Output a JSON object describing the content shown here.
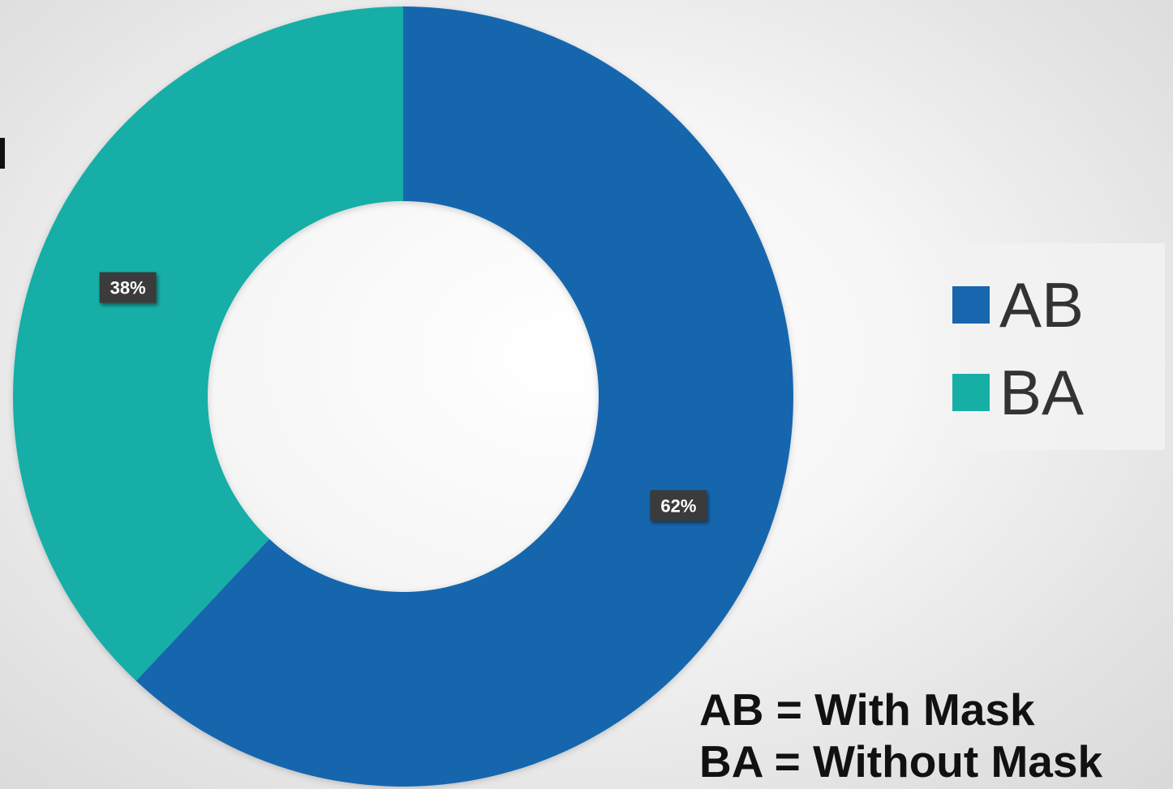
{
  "chart_data": {
    "type": "pie",
    "style": "donut",
    "categories": [
      "AB",
      "BA"
    ],
    "values": [
      62,
      38
    ],
    "data_labels": [
      "62%",
      "38%"
    ],
    "colors": [
      "#1866AE",
      "#17AEA6"
    ],
    "legend": {
      "placement": "right",
      "entries": [
        "AB",
        "BA"
      ]
    }
  },
  "notes": {
    "line1": "AB = With Mask",
    "line2": "BA = Without Mask"
  }
}
